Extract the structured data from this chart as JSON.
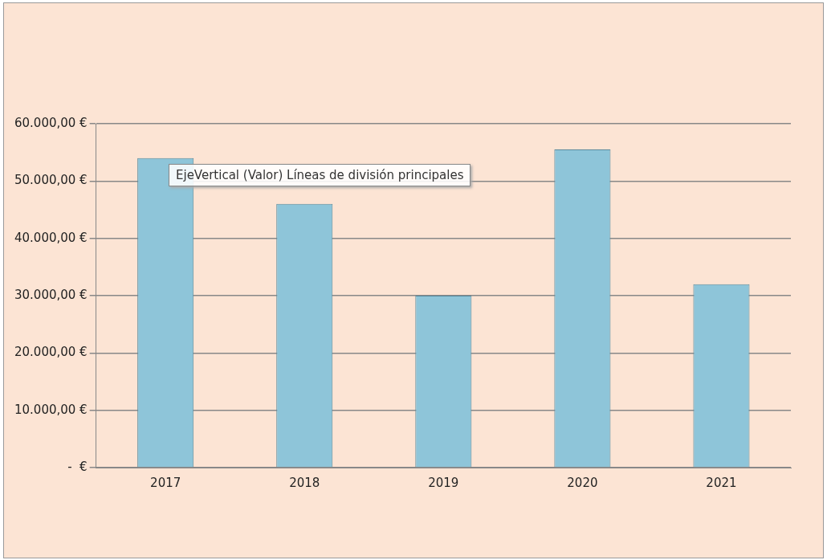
{
  "chart_data": {
    "type": "bar",
    "categories": [
      "2017",
      "2018",
      "2019",
      "2020",
      "2021"
    ],
    "values": [
      54000,
      46000,
      30000,
      55500,
      32000
    ],
    "color": "#8ec5d9",
    "ylim": [
      0,
      60000
    ],
    "yticks": [
      {
        "value": 0,
        "label": "-  €"
      },
      {
        "value": 10000,
        "label": "10.000,00 €"
      },
      {
        "value": 20000,
        "label": "20.000,00 €"
      },
      {
        "value": 30000,
        "label": "30.000,00 €"
      },
      {
        "value": 40000,
        "label": "40.000,00 €"
      },
      {
        "value": 50000,
        "label": "50.000,00 €"
      },
      {
        "value": 60000,
        "label": "60.000,00 €"
      }
    ],
    "grid": "y",
    "legend": false,
    "annotations": [
      "EjeVertical (Valor)  Líneas de división principales"
    ]
  }
}
